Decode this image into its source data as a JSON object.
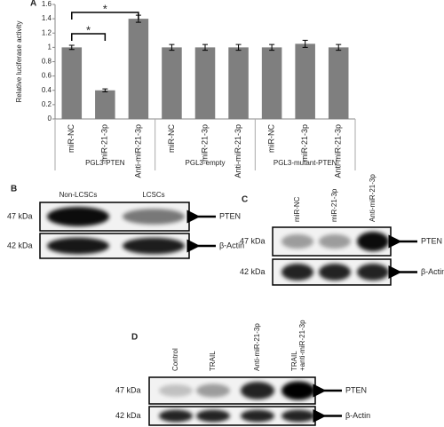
{
  "chart_data": {
    "type": "bar",
    "panel_label": "A",
    "y_label": "Relative luciferase activity",
    "categories": [
      "miR-NC",
      "miR-21-3p",
      "Anti-miR-21-3p",
      "miR-NC",
      "miR-21-3p",
      "Anti-miR-21-3p",
      "miR-NC",
      "miR-21-3p",
      "Anti-miR-21-3p"
    ],
    "groups": [
      "PGL3-PTEN",
      "PGL3-empty",
      "PGL3-mutant-PTEN"
    ],
    "values": [
      1,
      0.4,
      1.4,
      1,
      1,
      1,
      1,
      1.05,
      1
    ],
    "errors": [
      0.03,
      0.02,
      0.05,
      0.04,
      0.04,
      0.04,
      0.04,
      0.05,
      0.04
    ],
    "color": "#7f7f7f",
    "ylim": [
      0,
      1.6
    ],
    "yticks": [
      0,
      0.2,
      0.4,
      0.6,
      0.8,
      1,
      1.2,
      1.4,
      1.6
    ],
    "annotations": [
      "*",
      "*"
    ]
  },
  "blots": [
    {
      "panel": "B",
      "lanes": [
        "Non-LCSCs",
        "LCSCs"
      ],
      "markers": [
        "47 kDa",
        "42 kDa"
      ],
      "proteins": [
        "PTEN",
        "β-Actin"
      ]
    },
    {
      "panel": "C",
      "lanes": [
        "miR-NC",
        "miR-21-3p",
        "Anti-miR-21-3p"
      ],
      "markers": [
        "47 kDa",
        "42 kDa"
      ],
      "proteins": [
        "PTEN",
        "β-Actin"
      ]
    },
    {
      "panel": "D",
      "lanes": [
        "Control",
        "TRAIL",
        "Anti-miR-21-3p",
        [
          "TRAIL",
          "+anti-miR-21-3p"
        ]
      ],
      "markers": [
        "47 kDa",
        "42 kDa"
      ],
      "proteins": [
        "PTEN",
        "β-Actin"
      ]
    }
  ]
}
